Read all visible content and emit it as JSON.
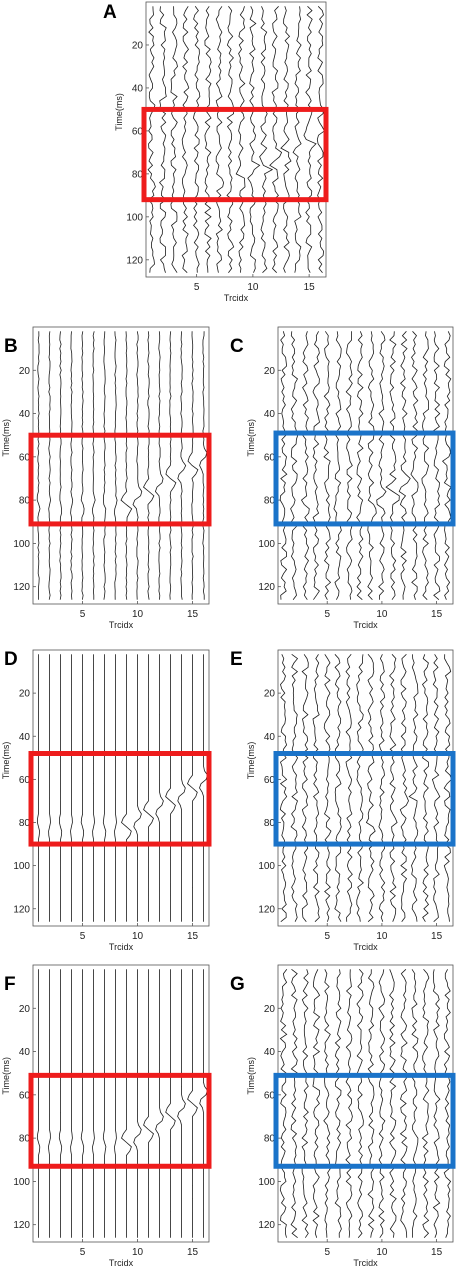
{
  "figure": {
    "colors": {
      "trace": "#1a1a1a",
      "frame": "#555555",
      "box_red": "#ee1c1c",
      "box_blue": "#1a73c9",
      "letter": "#000000"
    }
  },
  "chart_data": [
    {
      "panel": "A",
      "type": "seismic_wiggle",
      "xlabel": "Trcidx",
      "ylabel": "Time(ms)",
      "xlim": [
        0.5,
        16.5
      ],
      "ylim": [
        0,
        128
      ],
      "y_reversed": true,
      "xticks": [
        5,
        10,
        15
      ],
      "yticks": [
        20,
        40,
        60,
        80,
        100,
        120
      ],
      "traces": 16,
      "noise": "high",
      "event": "present",
      "highlight": {
        "color": "red",
        "time_range": [
          50,
          92
        ]
      }
    },
    {
      "panel": "B",
      "type": "seismic_wiggle",
      "xlabel": "Trcidx",
      "ylabel": "Time(ms)",
      "xlim": [
        0.5,
        16.5
      ],
      "ylim": [
        0,
        128
      ],
      "y_reversed": true,
      "xticks": [
        5,
        10,
        15
      ],
      "yticks": [
        20,
        40,
        60,
        80,
        100,
        120
      ],
      "traces": 16,
      "noise": "low",
      "event": "present",
      "highlight": {
        "color": "red",
        "time_range": [
          50,
          91
        ]
      }
    },
    {
      "panel": "C",
      "type": "seismic_wiggle",
      "xlabel": "Trcidx",
      "ylabel": "Time(ms)",
      "xlim": [
        0.5,
        16.5
      ],
      "ylim": [
        0,
        128
      ],
      "y_reversed": true,
      "xticks": [
        5,
        10,
        15
      ],
      "yticks": [
        20,
        40,
        60,
        80,
        100,
        120
      ],
      "traces": 16,
      "noise": "high",
      "event": "present",
      "highlight": {
        "color": "blue",
        "time_range": [
          49,
          91
        ]
      }
    },
    {
      "panel": "D",
      "type": "seismic_wiggle",
      "xlabel": "Trcidx",
      "ylabel": "Time(ms)",
      "xlim": [
        0.5,
        16.5
      ],
      "ylim": [
        0,
        128
      ],
      "y_reversed": true,
      "xticks": [
        5,
        10,
        15
      ],
      "yticks": [
        20,
        40,
        60,
        80,
        100,
        120
      ],
      "traces": 16,
      "noise": "none",
      "event": "present",
      "highlight": {
        "color": "red",
        "time_range": [
          48,
          90
        ]
      }
    },
    {
      "panel": "E",
      "type": "seismic_wiggle",
      "xlabel": "Trcidx",
      "ylabel": "Time(ms)",
      "xlim": [
        0.5,
        16.5
      ],
      "ylim": [
        0,
        128
      ],
      "y_reversed": true,
      "xticks": [
        5,
        10,
        15
      ],
      "yticks": [
        20,
        40,
        60,
        80,
        100,
        120
      ],
      "traces": 16,
      "noise": "high",
      "event": "weak",
      "highlight": {
        "color": "blue",
        "time_range": [
          48,
          90
        ]
      }
    },
    {
      "panel": "F",
      "type": "seismic_wiggle",
      "xlabel": "Trcidx",
      "ylabel": "Time(ms)",
      "xlim": [
        0.5,
        16.5
      ],
      "ylim": [
        0,
        128
      ],
      "y_reversed": true,
      "xticks": [
        5,
        10,
        15
      ],
      "yticks": [
        20,
        40,
        60,
        80,
        100,
        120
      ],
      "traces": 16,
      "noise": "none",
      "event": "present",
      "highlight": {
        "color": "red",
        "time_range": [
          51,
          93
        ]
      }
    },
    {
      "panel": "G",
      "type": "seismic_wiggle",
      "xlabel": "Trcidx",
      "ylabel": "Time(ms)",
      "xlim": [
        0.5,
        16.5
      ],
      "ylim": [
        0,
        128
      ],
      "y_reversed": true,
      "xticks": [
        5,
        10,
        15
      ],
      "yticks": [
        20,
        40,
        60,
        80,
        100,
        120
      ],
      "traces": 16,
      "noise": "high",
      "event": "none",
      "highlight": {
        "color": "blue",
        "time_range": [
          51,
          93
        ]
      }
    }
  ]
}
